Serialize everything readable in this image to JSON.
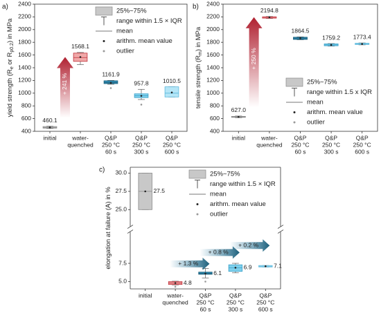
{
  "chart_data": [
    {
      "type": "box",
      "panel": "a)",
      "ylabel": [
        "yield strength (R",
        "e",
        " or R",
        "p0.2",
        ") in MPa"
      ],
      "categories": [
        [
          "initial"
        ],
        [
          "water-",
          "quenched"
        ],
        [
          "Q&P",
          "250 °C",
          "60 s"
        ],
        [
          "Q&P",
          "250 °C",
          "300 s"
        ],
        [
          "Q&P",
          "250 °C",
          "600 s"
        ]
      ],
      "boxes": [
        {
          "q1": 450,
          "q3": 475,
          "low": 445,
          "high": 480,
          "median": 460,
          "mean": 460.1,
          "outliers": [],
          "color": "#c8c8c8",
          "edge": "#888888"
        },
        {
          "q1": 1500,
          "q3": 1630,
          "low": 1450,
          "high": 1640,
          "median": 1560,
          "mean": 1568.1,
          "outliers": [],
          "color": "#f0a8a8",
          "edge": "#c0303a"
        },
        {
          "q1": 1150,
          "q3": 1195,
          "low": 1140,
          "high": 1200,
          "median": 1165,
          "mean": 1161.9,
          "outliers": [
            1080
          ],
          "color": "#2f8ab0",
          "edge": "#1d5f7a"
        },
        {
          "q1": 930,
          "q3": 990,
          "low": 900,
          "high": 1060,
          "median": 960,
          "mean": 957.8,
          "outliers": [
            820
          ],
          "color": "#7fd0ec",
          "edge": "#3aa0c8"
        },
        {
          "q1": 940,
          "q3": 1100,
          "low": 940,
          "high": 1100,
          "median": 1000,
          "mean": 1010.5,
          "outliers": [],
          "color": "#b5e6f7",
          "edge": "#5bb8dc"
        }
      ],
      "ylim": [
        400,
        2400
      ],
      "yticks": [
        400,
        600,
        800,
        1000,
        1200,
        1400,
        1600,
        1800,
        2000,
        2200,
        2400
      ],
      "legend": "upper right",
      "legend_labels": [
        "25%~75%",
        "range within 1.5 × IQR",
        "mean",
        "arithm. mean value",
        "outlier"
      ],
      "annotations": [
        "+ 241 %"
      ]
    },
    {
      "type": "box",
      "panel": "b)",
      "ylabel": [
        "tensile strength (R",
        "m",
        ") in MPa"
      ],
      "categories": [
        [
          "initial"
        ],
        [
          "water-",
          "quenched"
        ],
        [
          "Q&P",
          "250 °C",
          "60 s"
        ],
        [
          "Q&P",
          "250 °C",
          "300 s"
        ],
        [
          "Q&P",
          "250 °C",
          "600 s"
        ]
      ],
      "boxes": [
        {
          "q1": 620,
          "q3": 635,
          "low": 615,
          "high": 640,
          "median": 627,
          "mean": 627,
          "mean_label": "627.0",
          "outliers": [],
          "color": "#c8c8c8",
          "edge": "#888888"
        },
        {
          "q1": 2180,
          "q3": 2200,
          "low": 2175,
          "high": 2205,
          "median": 2195,
          "mean": 2194.8,
          "outliers": [],
          "color": "#f0a8a8",
          "edge": "#c0303a"
        },
        {
          "q1": 1845,
          "q3": 1880,
          "low": 1840,
          "high": 1885,
          "median": 1865,
          "mean": 1864.5,
          "outliers": [],
          "color": "#2f8ab0",
          "edge": "#1d5f7a"
        },
        {
          "q1": 1745,
          "q3": 1775,
          "low": 1740,
          "high": 1780,
          "median": 1760,
          "mean": 1759.2,
          "outliers": [],
          "color": "#7fd0ec",
          "edge": "#3aa0c8"
        },
        {
          "q1": 1765,
          "q3": 1785,
          "low": 1760,
          "high": 1790,
          "median": 1773,
          "mean": 1773.4,
          "outliers": [],
          "color": "#b5e6f7",
          "edge": "#5bb8dc"
        }
      ],
      "ylim": [
        400,
        2400
      ],
      "yticks": [
        400,
        600,
        800,
        1000,
        1200,
        1400,
        1600,
        1800,
        2000,
        2200,
        2400
      ],
      "legend": "lower right",
      "legend_labels": [
        "25%~75%",
        "range within 1.5 x IQR",
        "mean",
        "arithm. mean value",
        "outlier"
      ],
      "annotations": [
        "+ 250 %"
      ]
    },
    {
      "type": "box",
      "panel": "c)",
      "ylabel": [
        "elongation at failure (A) in %"
      ],
      "categories": [
        [
          "initial"
        ],
        [
          "water-",
          "quenched"
        ],
        [
          "Q&P",
          "250 °C",
          "60 s"
        ],
        [
          "Q&P",
          "250 °C",
          "300 s"
        ],
        [
          "Q&P",
          "250 °C",
          "600 s"
        ]
      ],
      "boxes": [
        {
          "q1": 25,
          "q3": 30,
          "low": 25,
          "high": 30,
          "median": 27.5,
          "mean": 27.5,
          "outliers": [],
          "color": "#c8c8c8",
          "edge": "#888888"
        },
        {
          "q1": 4.6,
          "q3": 5.0,
          "low": 4.55,
          "high": 5.05,
          "median": 4.8,
          "mean": 4.8,
          "outliers": [
            4.3
          ],
          "color": "#f0a8a8",
          "edge": "#c0303a"
        },
        {
          "q1": 6.0,
          "q3": 6.3,
          "low": 5.5,
          "high": 6.8,
          "median": 6.1,
          "mean": 6.1,
          "outliers": [
            5.0
          ],
          "color": "#2f8ab0",
          "edge": "#1d5f7a"
        },
        {
          "q1": 6.4,
          "q3": 7.3,
          "low": 6.2,
          "high": 7.5,
          "median": 6.9,
          "mean": 6.9,
          "outliers": [],
          "color": "#7fd0ec",
          "edge": "#3aa0c8"
        },
        {
          "q1": 7.0,
          "q3": 7.2,
          "low": 7.0,
          "high": 7.2,
          "median": 7.1,
          "mean": 7.1,
          "outliers": [],
          "color": "#b5e6f7",
          "edge": "#5bb8dc"
        }
      ],
      "ylim": [
        4,
        30.8
      ],
      "ybreak": [
        10,
        24.5
      ],
      "yticks": [
        {
          "value": 5,
          "label": "5.0"
        },
        7.5,
        {
          "value": 25,
          "label": "25.0"
        },
        27.5,
        {
          "value": 30,
          "label": "30.0"
        }
      ],
      "legend": "upper right",
      "legend_labels": [
        "25%~75%",
        "range within 1.5 × IQR",
        "mean",
        "arithm. mean value",
        "outlier"
      ],
      "annotations": [
        "+ 1.3 %",
        "+ 0.8 %",
        "+ 0.2 %"
      ]
    }
  ]
}
